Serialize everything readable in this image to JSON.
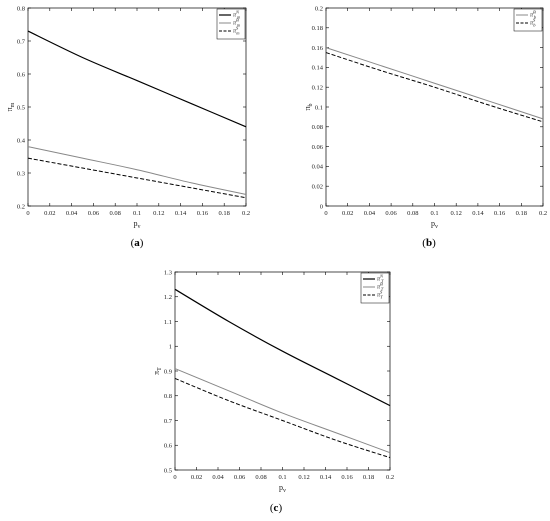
{
  "chart_data": [
    {
      "type": "line",
      "caption": "(a)",
      "xlabel": "p_v",
      "ylabel": "π_m",
      "xlim": [
        0,
        0.2
      ],
      "ylim": [
        0.2,
        0.8
      ],
      "xticks": [
        "0",
        "0.02",
        "0.04",
        "0.06",
        "0.08",
        "0.1",
        "0.12",
        "0.14",
        "0.16",
        "0.18",
        "0.2"
      ],
      "yticks": [
        "0.2",
        "0.3",
        "0.4",
        "0.5",
        "0.6",
        "0.7",
        "0.8"
      ],
      "x": [
        0,
        0.05,
        0.1,
        0.15,
        0.2
      ],
      "legend_position": "top-right",
      "series": [
        {
          "name": "π_m^N",
          "style": "solid-black",
          "values": [
            0.73,
            0.65,
            0.58,
            0.51,
            0.44
          ]
        },
        {
          "name": "π_m^B",
          "style": "solid-gray",
          "values": [
            0.38,
            0.345,
            0.31,
            0.27,
            0.235
          ]
        },
        {
          "name": "π_m^S",
          "style": "dashed-black",
          "values": [
            0.345,
            0.315,
            0.285,
            0.255,
            0.225
          ]
        }
      ]
    },
    {
      "type": "line",
      "caption": "(b)",
      "xlabel": "p_v",
      "ylabel": "π_b",
      "xlim": [
        0,
        0.2
      ],
      "ylim": [
        0,
        0.2
      ],
      "xticks": [
        "0",
        "0.02",
        "0.04",
        "0.06",
        "0.08",
        "0.1",
        "0.12",
        "0.14",
        "0.16",
        "0.18",
        "0.2"
      ],
      "yticks": [
        "0",
        "0.02",
        "0.04",
        "0.06",
        "0.08",
        "0.1",
        "0.12",
        "0.14",
        "0.16",
        "0.18",
        "0.2"
      ],
      "x": [
        0,
        0.05,
        0.1,
        0.15,
        0.2
      ],
      "legend_position": "top-right",
      "series": [
        {
          "name": "π_b^B",
          "style": "solid-gray",
          "values": [
            0.16,
            0.142,
            0.124,
            0.106,
            0.088
          ]
        },
        {
          "name": "π_b^S",
          "style": "dashed-black",
          "values": [
            0.155,
            0.137,
            0.12,
            0.102,
            0.085
          ]
        }
      ]
    },
    {
      "type": "line",
      "caption": "(c)",
      "xlabel": "p_v",
      "ylabel": "π_T",
      "xlim": [
        0,
        0.2
      ],
      "ylim": [
        0.5,
        1.3
      ],
      "xticks": [
        "0",
        "0.02",
        "0.04",
        "0.06",
        "0.08",
        "0.1",
        "0.12",
        "0.14",
        "0.16",
        "0.18",
        "0.2"
      ],
      "yticks": [
        "0.5",
        "0.6",
        "0.7",
        "0.8",
        "0.9",
        "1",
        "1.1",
        "1.2",
        "1.3"
      ],
      "x": [
        0,
        0.05,
        0.1,
        0.15,
        0.2
      ],
      "legend_position": "top-right",
      "series": [
        {
          "name": "π_T^N",
          "style": "solid-black",
          "values": [
            1.23,
            1.1,
            0.98,
            0.87,
            0.76
          ]
        },
        {
          "name": "π_T^B",
          "style": "solid-gray",
          "values": [
            0.91,
            0.82,
            0.73,
            0.65,
            0.57
          ]
        },
        {
          "name": "π_T^S",
          "style": "dashed-black",
          "values": [
            0.87,
            0.78,
            0.7,
            0.62,
            0.55
          ]
        }
      ]
    }
  ]
}
